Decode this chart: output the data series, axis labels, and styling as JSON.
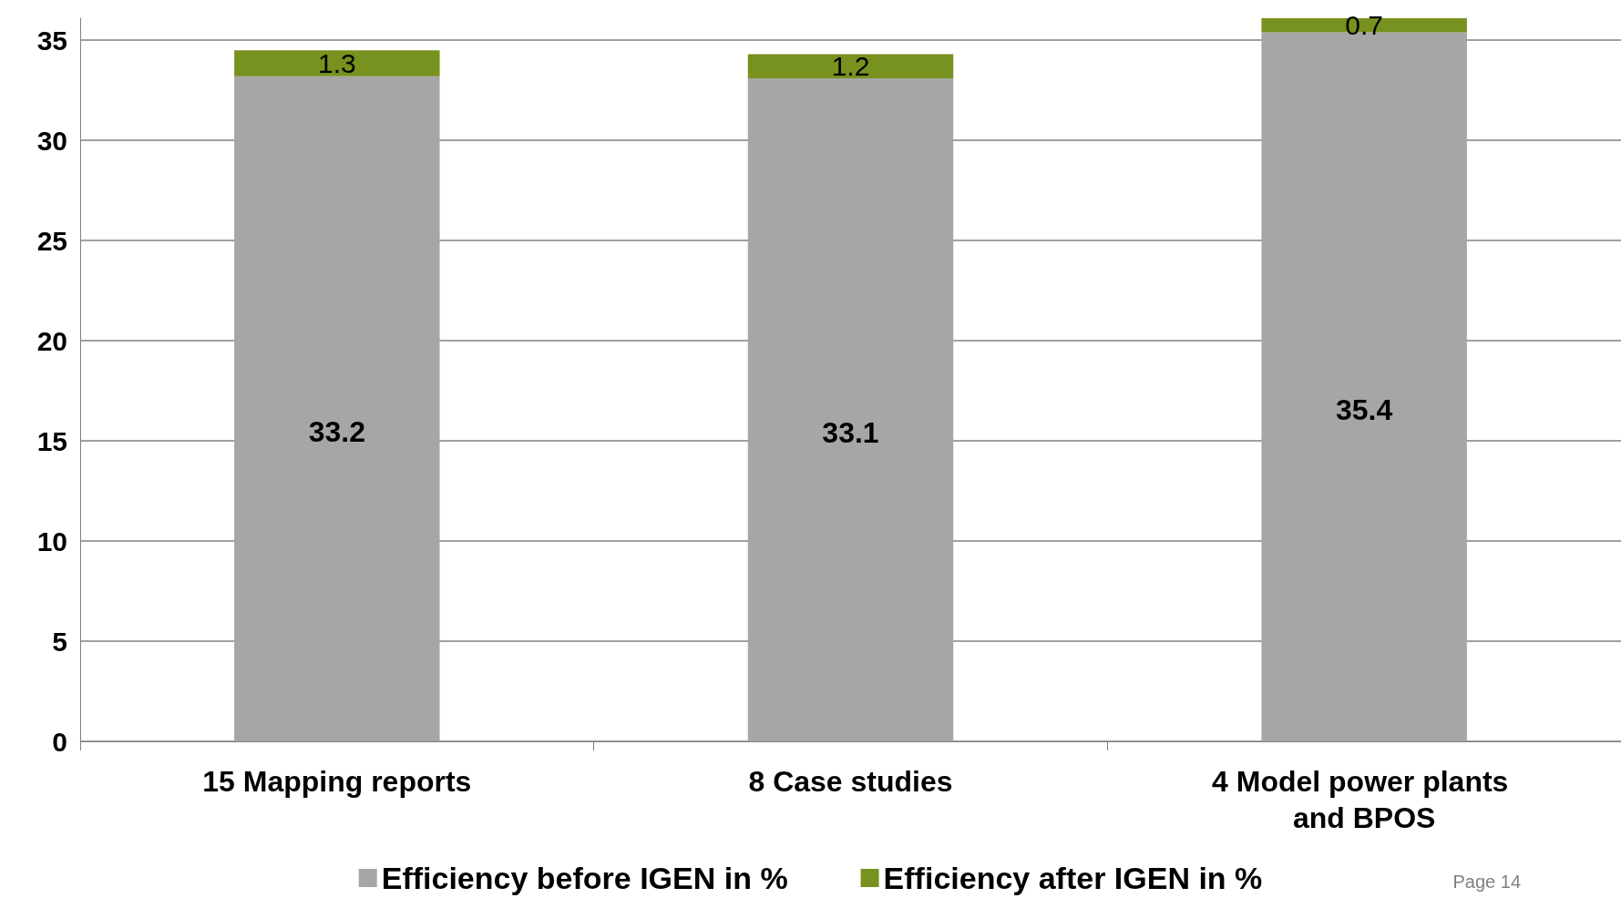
{
  "chart_data": {
    "type": "bar",
    "stacked": true,
    "categories": [
      "15 Mapping reports",
      "8 Case studies",
      "4 Model power plants and BPOS"
    ],
    "series": [
      {
        "name": "Efficiency before IGEN in %",
        "color": "#a6a6a6",
        "values": [
          33.2,
          33.1,
          35.4
        ]
      },
      {
        "name": "Efficiency after IGEN in %",
        "color": "#77921e",
        "values": [
          1.3,
          1.2,
          0.7
        ]
      }
    ],
    "ylim": [
      0,
      36.1
    ],
    "yticks": [
      0,
      5,
      10,
      15,
      20,
      25,
      30,
      35
    ],
    "grid": "y",
    "legend": "bottom",
    "data_labels": true,
    "annotations": [
      "Page 14"
    ]
  }
}
